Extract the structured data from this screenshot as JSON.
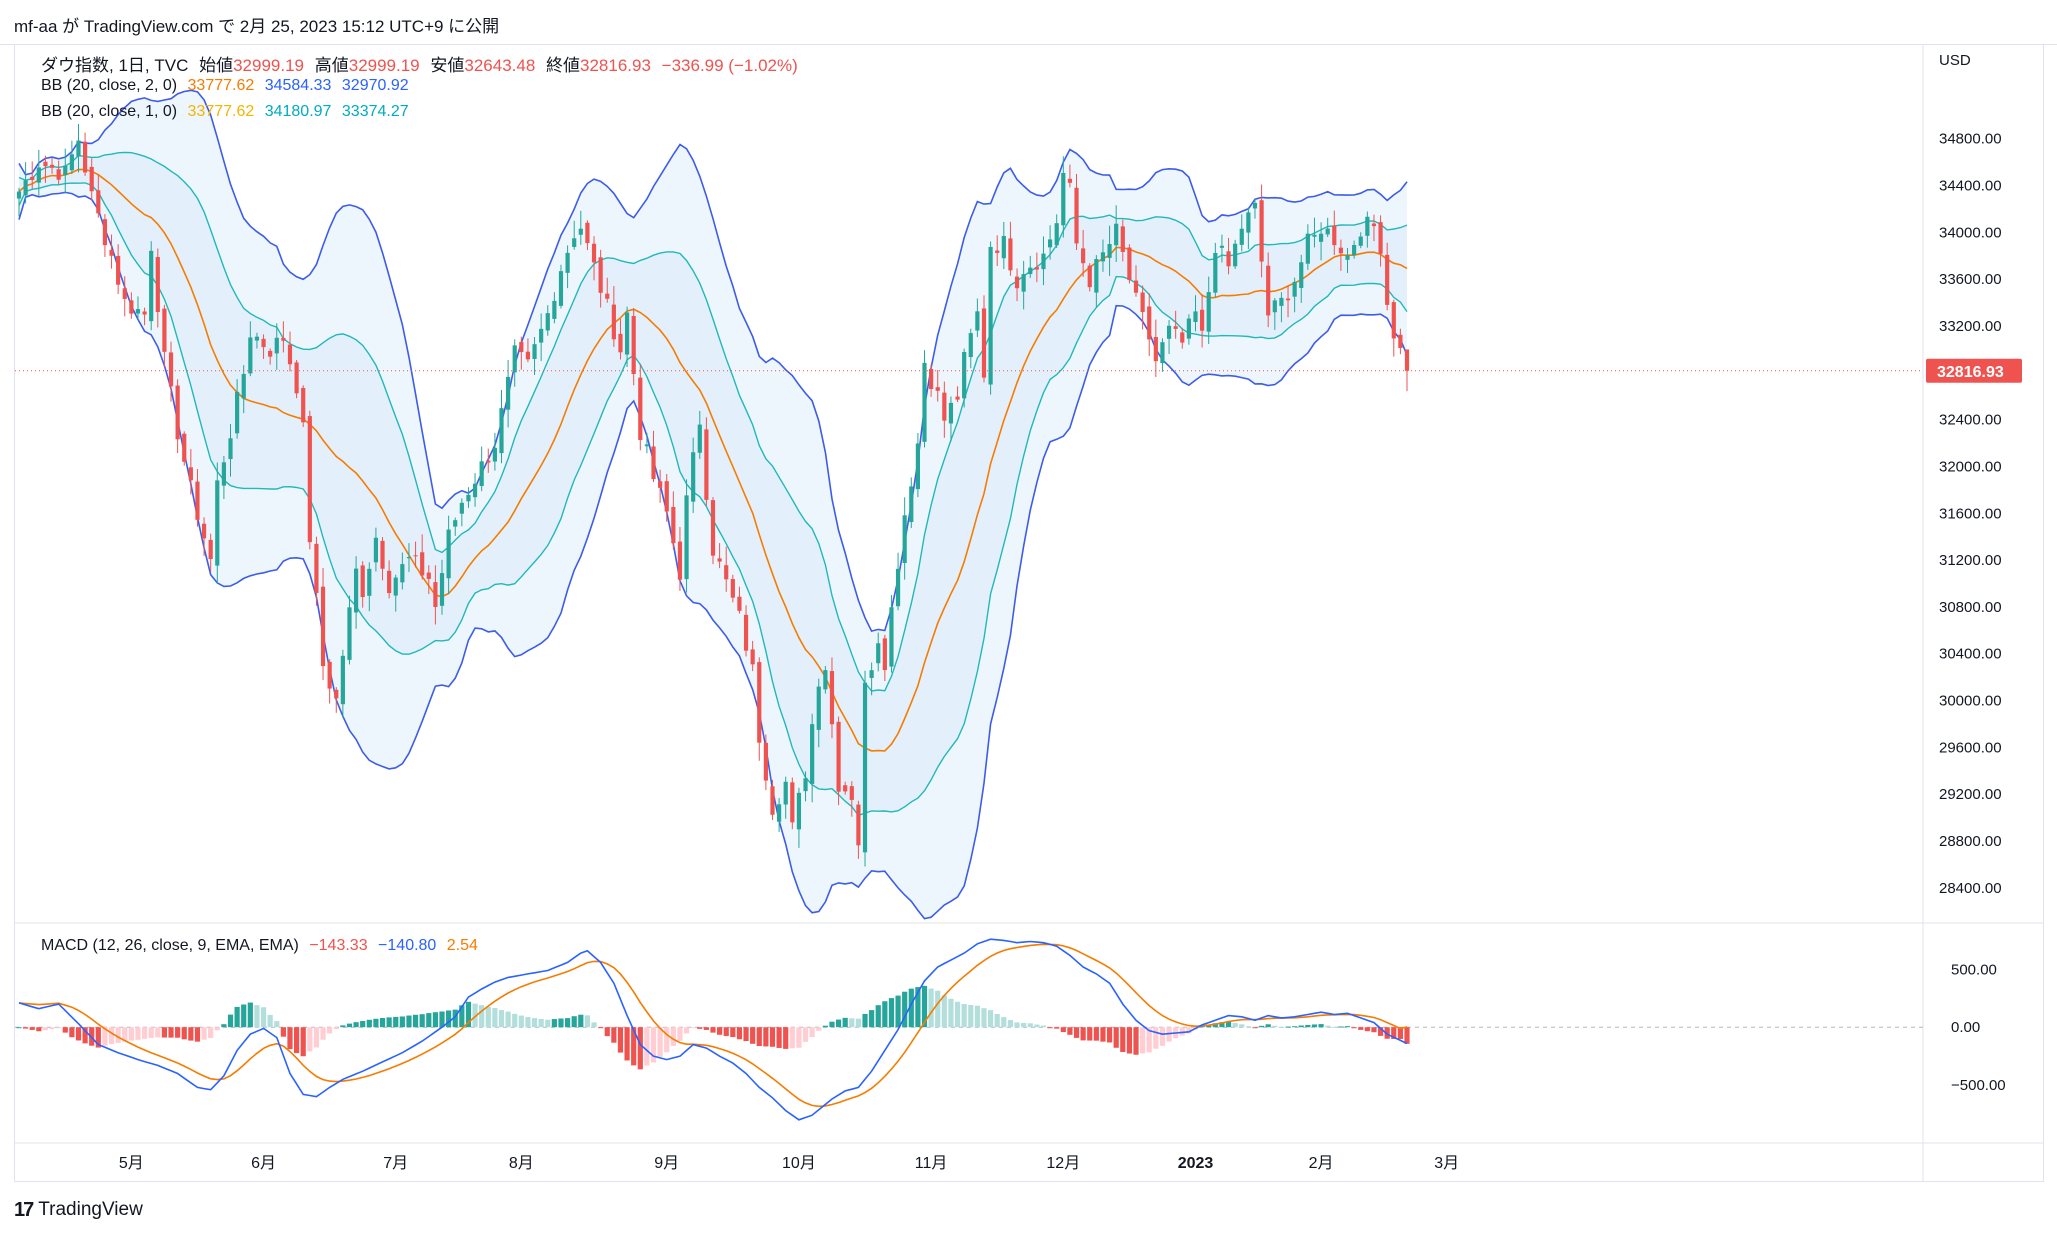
{
  "header": {
    "publish_line": "mf-aa が TradingView.com で 2月 25, 2023 15:12 UTC+9 に公開"
  },
  "legend": {
    "symbol": "ダウ指数, 1日, TVC",
    "open_label": "始値",
    "open": "32999.19",
    "high_label": "高値",
    "high": "32999.19",
    "low_label": "安値",
    "low": "32643.48",
    "close_label": "終値",
    "close": "32816.93",
    "change": "−336.99 (−1.02%)",
    "bb2_label": "BB (20, close, 2, 0)",
    "bb2_basis": "33777.62",
    "bb2_upper": "34584.33",
    "bb2_lower": "32970.92",
    "bb1_label": "BB (20, close, 1, 0)",
    "bb1_basis": "33777.62",
    "bb1_upper": "34180.97",
    "bb1_lower": "33374.27",
    "macd_label": "MACD (12, 26, close, 9, EMA, EMA)",
    "macd_hist": "−143.33",
    "macd_line": "−140.80",
    "macd_signal": "2.54"
  },
  "currency": "USD",
  "last_price_tag": "32816.93",
  "footer": {
    "logo": "17",
    "brand": "TradingView"
  },
  "colors": {
    "up": "#26a69a",
    "down": "#ef5350",
    "bb_outer": "#3d5ce8",
    "bb_inner": "#22b8b8",
    "basis": "#f57c00",
    "bb_fill": "#e3f2fd",
    "macd": "#2962ff",
    "signal": "#f57c00",
    "hist_up_strong": "#26a69a",
    "hist_up_weak": "#b2dfdb",
    "hist_down_strong": "#ef5350",
    "hist_down_weak": "#ffcdd2",
    "last_tag": "#ef5350"
  },
  "chart_data": {
    "type": "candlestick",
    "price_axis": {
      "ticks": [
        34800,
        34400,
        34000,
        33600,
        33200,
        32800,
        32400,
        32000,
        31600,
        31200,
        30800,
        30400,
        30000,
        29600,
        29200,
        28800,
        28400
      ],
      "tick_labels": [
        "34800.00",
        "34400.00",
        "34000.00",
        "33600.00",
        "33200.00",
        "",
        "32400.00",
        "32000.00",
        "31600.00",
        "31200.00",
        "30800.00",
        "30400.00",
        "30000.00",
        "29600.00",
        "29200.00",
        "28800.00",
        "28400.00"
      ],
      "range": [
        28100,
        35600
      ]
    },
    "macd_axis": {
      "ticks": [
        500,
        0,
        -500
      ],
      "tick_labels": [
        "500.00",
        "0.00",
        "−500.00"
      ],
      "range": [
        -1000,
        900
      ]
    },
    "time_axis": {
      "labels": [
        "5月",
        "6月",
        "7月",
        "8月",
        "9月",
        "10月",
        "11月",
        "12月",
        "2023",
        "2月",
        "3月"
      ],
      "label_index": [
        17,
        37,
        57,
        76,
        98,
        118,
        138,
        158,
        178,
        197,
        216
      ]
    },
    "bars": 211,
    "close_anchors": [
      [
        0,
        34350
      ],
      [
        3,
        34600
      ],
      [
        7,
        34500
      ],
      [
        9,
        34800
      ],
      [
        11,
        34300
      ],
      [
        14,
        33800
      ],
      [
        16,
        33400
      ],
      [
        19,
        33300
      ],
      [
        20,
        33900
      ],
      [
        22,
        32900
      ],
      [
        24,
        32300
      ],
      [
        26,
        31800
      ],
      [
        29,
        31200
      ],
      [
        30,
        31850
      ],
      [
        32,
        32300
      ],
      [
        34,
        32800
      ],
      [
        35,
        33150
      ],
      [
        38,
        33000
      ],
      [
        40,
        33100
      ],
      [
        42,
        32700
      ],
      [
        43,
        32300
      ],
      [
        44,
        31400
      ],
      [
        46,
        30300
      ],
      [
        48,
        30000
      ],
      [
        49,
        30400
      ],
      [
        51,
        31100
      ],
      [
        52,
        30950
      ],
      [
        54,
        31400
      ],
      [
        56,
        31000
      ],
      [
        59,
        31200
      ],
      [
        62,
        31050
      ],
      [
        63,
        30800
      ],
      [
        65,
        31400
      ],
      [
        67,
        31700
      ],
      [
        70,
        32000
      ],
      [
        72,
        32200
      ],
      [
        74,
        32700
      ],
      [
        75,
        32950
      ],
      [
        77,
        32850
      ],
      [
        80,
        33300
      ],
      [
        82,
        33700
      ],
      [
        84,
        34000
      ],
      [
        85,
        34050
      ],
      [
        87,
        33700
      ],
      [
        89,
        33350
      ],
      [
        91,
        33000
      ],
      [
        92,
        33300
      ],
      [
        93,
        32800
      ],
      [
        94,
        32300
      ],
      [
        96,
        31900
      ],
      [
        98,
        31600
      ],
      [
        100,
        31100
      ],
      [
        101,
        31700
      ],
      [
        103,
        32400
      ],
      [
        104,
        31800
      ],
      [
        105,
        31300
      ],
      [
        107,
        31000
      ],
      [
        109,
        30700
      ],
      [
        111,
        30250
      ],
      [
        112,
        29700
      ],
      [
        114,
        29100
      ],
      [
        116,
        29300
      ],
      [
        117,
        28900
      ],
      [
        119,
        29400
      ],
      [
        121,
        30200
      ],
      [
        122,
        30300
      ],
      [
        124,
        29300
      ],
      [
        126,
        29200
      ],
      [
        127,
        28800
      ],
      [
        128,
        30100
      ],
      [
        130,
        30550
      ],
      [
        131,
        30350
      ],
      [
        133,
        31200
      ],
      [
        134,
        31600
      ],
      [
        136,
        32200
      ],
      [
        137,
        32900
      ],
      [
        139,
        32600
      ],
      [
        140,
        32400
      ],
      [
        142,
        32600
      ],
      [
        143,
        32900
      ],
      [
        145,
        33300
      ],
      [
        146,
        32800
      ],
      [
        147,
        33900
      ],
      [
        149,
        33900
      ],
      [
        151,
        33600
      ],
      [
        152,
        33700
      ],
      [
        155,
        33800
      ],
      [
        157,
        34100
      ],
      [
        158,
        34500
      ],
      [
        159,
        34350
      ],
      [
        160,
        33900
      ],
      [
        162,
        33600
      ],
      [
        164,
        33800
      ],
      [
        166,
        34000
      ],
      [
        167,
        33800
      ],
      [
        169,
        33400
      ],
      [
        171,
        33100
      ],
      [
        172,
        32900
      ],
      [
        174,
        33150
      ],
      [
        176,
        33050
      ],
      [
        178,
        33300
      ],
      [
        179,
        33100
      ],
      [
        181,
        33900
      ],
      [
        183,
        33700
      ],
      [
        185,
        34050
      ],
      [
        187,
        34200
      ],
      [
        189,
        33300
      ],
      [
        191,
        33400
      ],
      [
        193,
        33600
      ],
      [
        195,
        33900
      ],
      [
        196,
        33950
      ],
      [
        197,
        34050
      ],
      [
        199,
        33950
      ],
      [
        201,
        33800
      ],
      [
        203,
        34050
      ],
      [
        205,
        34050
      ],
      [
        206,
        33900
      ],
      [
        207,
        33400
      ],
      [
        208,
        33150
      ],
      [
        210,
        32816.93
      ]
    ],
    "macd_anchors": [
      [
        0,
        210
      ],
      [
        3,
        160
      ],
      [
        6,
        200
      ],
      [
        9,
        30
      ],
      [
        12,
        -150
      ],
      [
        15,
        -220
      ],
      [
        18,
        -280
      ],
      [
        21,
        -330
      ],
      [
        24,
        -400
      ],
      [
        27,
        -520
      ],
      [
        29,
        -540
      ],
      [
        31,
        -420
      ],
      [
        33,
        -200
      ],
      [
        35,
        -60
      ],
      [
        37,
        -10
      ],
      [
        39,
        -90
      ],
      [
        41,
        -400
      ],
      [
        43,
        -580
      ],
      [
        45,
        -600
      ],
      [
        47,
        -520
      ],
      [
        49,
        -450
      ],
      [
        52,
        -380
      ],
      [
        55,
        -300
      ],
      [
        58,
        -220
      ],
      [
        61,
        -120
      ],
      [
        64,
        0
      ],
      [
        66,
        90
      ],
      [
        68,
        260
      ],
      [
        70,
        330
      ],
      [
        72,
        390
      ],
      [
        74,
        430
      ],
      [
        77,
        460
      ],
      [
        80,
        490
      ],
      [
        83,
        560
      ],
      [
        85,
        640
      ],
      [
        86,
        660
      ],
      [
        88,
        560
      ],
      [
        90,
        380
      ],
      [
        92,
        100
      ],
      [
        94,
        -150
      ],
      [
        96,
        -250
      ],
      [
        98,
        -280
      ],
      [
        100,
        -250
      ],
      [
        102,
        -150
      ],
      [
        104,
        -180
      ],
      [
        106,
        -250
      ],
      [
        108,
        -310
      ],
      [
        110,
        -400
      ],
      [
        112,
        -520
      ],
      [
        114,
        -610
      ],
      [
        116,
        -720
      ],
      [
        118,
        -800
      ],
      [
        120,
        -760
      ],
      [
        123,
        -620
      ],
      [
        125,
        -550
      ],
      [
        127,
        -520
      ],
      [
        129,
        -380
      ],
      [
        131,
        -200
      ],
      [
        133,
        -20
      ],
      [
        135,
        200
      ],
      [
        137,
        400
      ],
      [
        139,
        520
      ],
      [
        141,
        580
      ],
      [
        143,
        640
      ],
      [
        145,
        720
      ],
      [
        147,
        760
      ],
      [
        149,
        750
      ],
      [
        151,
        730
      ],
      [
        153,
        740
      ],
      [
        155,
        730
      ],
      [
        157,
        700
      ],
      [
        159,
        620
      ],
      [
        161,
        520
      ],
      [
        163,
        460
      ],
      [
        165,
        380
      ],
      [
        167,
        200
      ],
      [
        169,
        60
      ],
      [
        171,
        -30
      ],
      [
        173,
        -60
      ],
      [
        175,
        -50
      ],
      [
        177,
        -40
      ],
      [
        179,
        20
      ],
      [
        181,
        60
      ],
      [
        183,
        100
      ],
      [
        185,
        90
      ],
      [
        187,
        60
      ],
      [
        189,
        100
      ],
      [
        191,
        80
      ],
      [
        193,
        90
      ],
      [
        195,
        110
      ],
      [
        197,
        130
      ],
      [
        199,
        110
      ],
      [
        201,
        120
      ],
      [
        203,
        80
      ],
      [
        205,
        40
      ],
      [
        207,
        -60
      ],
      [
        210,
        -140.8
      ]
    ]
  }
}
